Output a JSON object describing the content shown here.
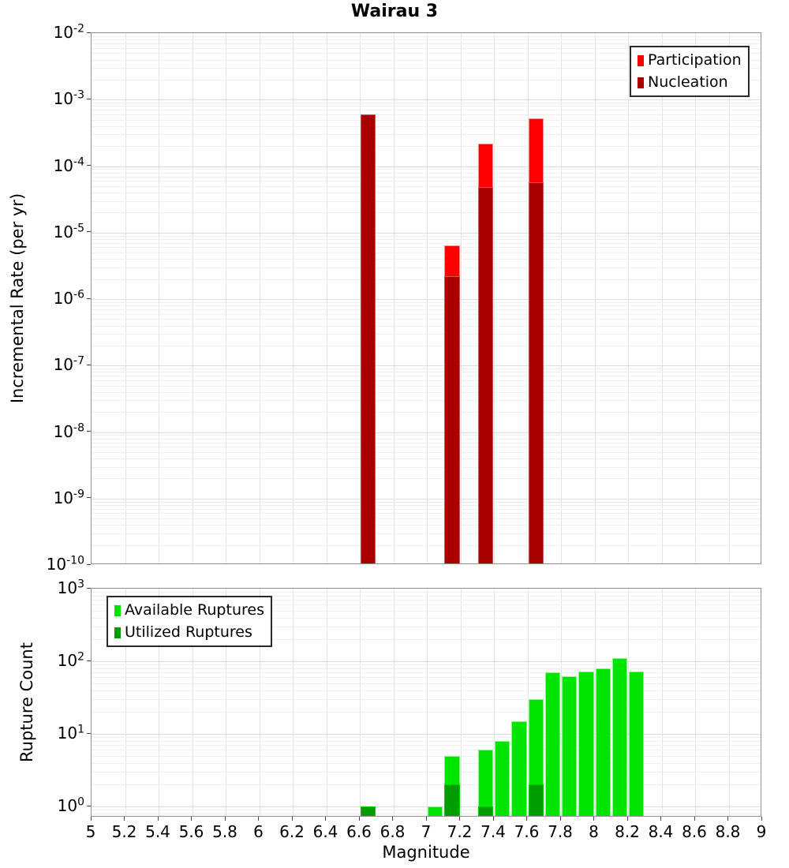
{
  "title": "Wairau 3",
  "chart_data": [
    {
      "type": "bar",
      "title": "Wairau 3",
      "ylabel": "Incremental Rate (per yr)",
      "xlabel": "",
      "yscale": "log",
      "ylim": [
        1e-10,
        0.01
      ],
      "xlim": [
        5,
        9
      ],
      "xtick_step": 0.2,
      "bin_width": 0.1,
      "grid": true,
      "legend_position": "top-right",
      "ytick_exponents": [
        -2,
        -3,
        -4,
        -5,
        -6,
        -7,
        -8,
        -9,
        -10
      ],
      "series": [
        {
          "name": "Participation",
          "color": "#ff0000",
          "edge": "#ff8a8a",
          "bins": [
            [
              6.65,
              0.0006
            ],
            [
              7.15,
              6.5e-06
            ],
            [
              7.35,
              0.00022
            ],
            [
              7.65,
              0.00052
            ]
          ]
        },
        {
          "name": "Nucleation",
          "color": "#aa0000",
          "edge": "#cc5a5a",
          "bins": [
            [
              6.65,
              0.0006
            ],
            [
              7.15,
              2.2e-06
            ],
            [
              7.35,
              4.8e-05
            ],
            [
              7.65,
              5.7e-05
            ]
          ]
        }
      ]
    },
    {
      "type": "bar",
      "title": "",
      "ylabel": "Rupture Count",
      "xlabel": "Magnitude",
      "yscale": "log",
      "ylim": [
        1,
        1000
      ],
      "xlim": [
        5,
        9
      ],
      "xtick_step": 0.2,
      "bin_width": 0.1,
      "grid": true,
      "legend_position": "top-left",
      "ytick_exponents": [
        3,
        2,
        1,
        0
      ],
      "xticks": [
        "5",
        "5.2",
        "5.4",
        "5.6",
        "5.8",
        "6",
        "6.2",
        "6.4",
        "6.6",
        "6.8",
        "7",
        "7.2",
        "7.4",
        "7.6",
        "7.8",
        "8",
        "8.2",
        "8.4",
        "8.6",
        "8.8",
        "9"
      ],
      "series": [
        {
          "name": "Available Ruptures",
          "color": "#00e400",
          "edge": "#7dff7d",
          "bins": [
            [
              6.65,
              1
            ],
            [
              7.05,
              1
            ],
            [
              7.15,
              5
            ],
            [
              7.35,
              6
            ],
            [
              7.45,
              8
            ],
            [
              7.55,
              15
            ],
            [
              7.65,
              30
            ],
            [
              7.75,
              70
            ],
            [
              7.85,
              62
            ],
            [
              7.95,
              72
            ],
            [
              8.05,
              80
            ],
            [
              8.15,
              110
            ],
            [
              8.25,
              72
            ]
          ]
        },
        {
          "name": "Utilized Ruptures",
          "color": "#009c00",
          "edge": "#00cf00",
          "bins": [
            [
              6.65,
              1
            ],
            [
              7.15,
              2
            ],
            [
              7.35,
              1
            ],
            [
              7.65,
              2
            ]
          ]
        }
      ]
    }
  ]
}
